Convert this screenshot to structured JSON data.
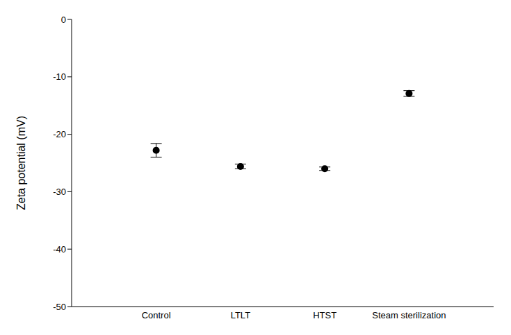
{
  "chart_data": {
    "type": "scatter",
    "y_label": "Zeta potential (mV)",
    "categories": [
      "Control",
      "LTLT",
      "HTST",
      "Steam sterilization"
    ],
    "values": [
      -22.8,
      -25.6,
      -26.0,
      -12.9
    ],
    "errors": [
      1.2,
      0.4,
      0.3,
      0.5
    ],
    "color": "#000000",
    "marker": "circle",
    "ylim": [
      -50,
      0
    ],
    "yticks": [
      -50,
      -40,
      -30,
      -20,
      -10,
      0
    ],
    "grid": false
  }
}
